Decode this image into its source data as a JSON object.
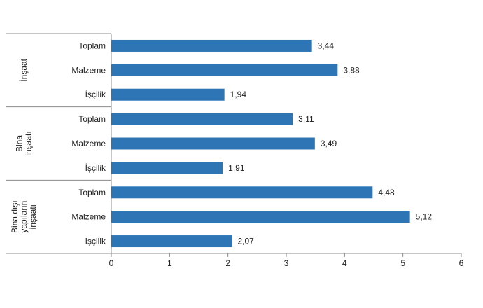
{
  "chart_data": {
    "type": "bar",
    "orientation": "horizontal",
    "groups": [
      {
        "label_lines": [
          "İnşaat"
        ],
        "categories": [
          "Toplam",
          "Malzeme",
          "İşçilik"
        ],
        "values": [
          3.44,
          3.88,
          1.94
        ],
        "value_labels": [
          "3,44",
          "3,88",
          "1,94"
        ]
      },
      {
        "label_lines": [
          "Bina",
          "inşaatı"
        ],
        "categories": [
          "Toplam",
          "Malzeme",
          "İşçilik"
        ],
        "values": [
          3.11,
          3.49,
          1.91
        ],
        "value_labels": [
          "3,11",
          "3,49",
          "1,91"
        ]
      },
      {
        "label_lines": [
          "Bina dışı",
          "yapıların",
          "inşaatı"
        ],
        "categories": [
          "Toplam",
          "Malzeme",
          "İşçilik"
        ],
        "values": [
          4.48,
          5.12,
          2.07
        ],
        "value_labels": [
          "4,48",
          "5,12",
          "2,07"
        ]
      }
    ],
    "xlim": [
      0,
      6
    ],
    "xticks": [
      0,
      1,
      2,
      3,
      4,
      5,
      6
    ],
    "xtick_labels": [
      "0",
      "1",
      "2",
      "3",
      "4",
      "5",
      "6"
    ],
    "bar_color": "#2E75B6",
    "grid": false
  }
}
